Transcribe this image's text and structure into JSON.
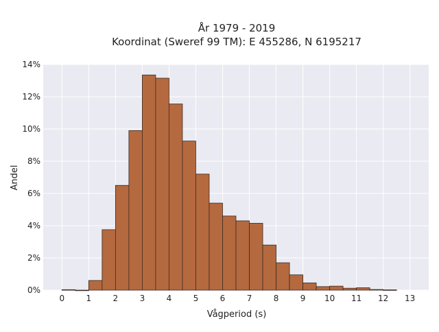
{
  "chart_data": {
    "type": "bar",
    "title_lines": [
      "År 1979 - 2019",
      "Koordinat (Sweref 99 TM): E 455286, N 6195217"
    ],
    "xlabel": "Vågperiod (s)",
    "ylabel": "Andel",
    "xlim": [
      -0.7,
      13.7
    ],
    "ylim": [
      0,
      0.14
    ],
    "x_ticks": [
      0,
      1,
      2,
      3,
      4,
      5,
      6,
      7,
      8,
      9,
      10,
      11,
      12,
      13
    ],
    "y_ticks": [
      0,
      0.02,
      0.04,
      0.06,
      0.08,
      0.1,
      0.12,
      0.14
    ],
    "y_tick_labels": [
      "0%",
      "2%",
      "4%",
      "6%",
      "8%",
      "10%",
      "12%",
      "14%"
    ],
    "bin_width": 0.5,
    "bin_starts": [
      0,
      0.5,
      1,
      1.5,
      2,
      2.5,
      3,
      3.5,
      4,
      4.5,
      5,
      5.5,
      6,
      6.5,
      7,
      7.5,
      8,
      8.5,
      9,
      9.5,
      10,
      10.5,
      11,
      11.5,
      12
    ],
    "values": [
      0.0003,
      0.0,
      0.006,
      0.0375,
      0.065,
      0.099,
      0.1335,
      0.1315,
      0.1155,
      0.0925,
      0.072,
      0.054,
      0.046,
      0.043,
      0.0415,
      0.028,
      0.017,
      0.0095,
      0.0045,
      0.0022,
      0.0025,
      0.0012,
      0.0015,
      0.0004,
      0.0002
    ],
    "grid": true,
    "colors": {
      "bar_fill": "#b5693f",
      "bar_edge": "#3a2a20",
      "plot_background": "#eaeaf2",
      "grid": "#ffffff"
    }
  }
}
